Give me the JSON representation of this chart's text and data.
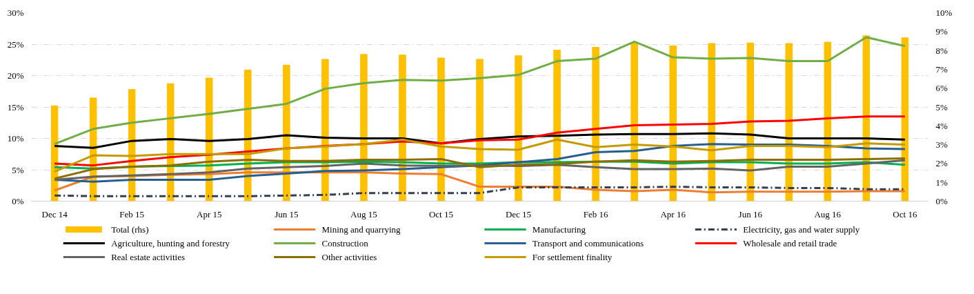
{
  "chart_data": {
    "type": "line",
    "categories": [
      "Dec 14",
      null,
      "Feb 15",
      null,
      "Apr 15",
      null,
      "Jun 15",
      null,
      "Aug 15",
      null,
      "Oct 15",
      null,
      "Dec 15",
      null,
      "Feb 16",
      null,
      "Apr 16",
      null,
      "Jun 16",
      null,
      "Aug 16",
      null,
      "Oct 16"
    ],
    "ylim": [
      0,
      30
    ],
    "yticks": [
      {
        "value": 0,
        "label": "0%"
      },
      {
        "value": 5,
        "label": "5%"
      },
      {
        "value": 10,
        "label": "10%"
      },
      {
        "value": 15,
        "label": "15%"
      },
      {
        "value": 20,
        "label": "20%"
      },
      {
        "value": 25,
        "label": "25%"
      },
      {
        "value": 30,
        "label": "30%"
      }
    ],
    "y2lim": [
      0,
      10
    ],
    "y2ticks": [
      {
        "value": 0,
        "label": "0%"
      },
      {
        "value": 1,
        "label": "1%"
      },
      {
        "value": 2,
        "label": "2%"
      },
      {
        "value": 3,
        "label": "3%"
      },
      {
        "value": 4,
        "label": "4%"
      },
      {
        "value": 5,
        "label": "5%"
      },
      {
        "value": 6,
        "label": "6%"
      },
      {
        "value": 7,
        "label": "7%"
      },
      {
        "value": 8,
        "label": "8%"
      },
      {
        "value": 9,
        "label": "9%"
      },
      {
        "value": 10,
        "label": "10%"
      }
    ],
    "grid": "y",
    "legend": "bottom",
    "series": [
      {
        "name": "Total (rhs)",
        "type": "bar",
        "axis": "y2",
        "color": "#ffc000",
        "values": [
          5.06,
          5.48,
          5.93,
          6.24,
          6.54,
          6.96,
          7.22,
          7.53,
          7.79,
          7.76,
          7.6,
          7.53,
          7.72,
          8.02,
          8.17,
          8.4,
          8.25,
          8.37,
          8.4,
          8.37,
          8.44,
          8.78,
          8.67
        ]
      },
      {
        "name": "Mining and quarrying",
        "color": "#ed7d31",
        "values": [
          1.7,
          3.9,
          4.0,
          4.2,
          4.3,
          4.6,
          4.6,
          4.6,
          4.6,
          4.4,
          4.3,
          2.3,
          2.3,
          2.3,
          1.8,
          1.6,
          1.8,
          1.4,
          1.5,
          1.5,
          1.5,
          1.6,
          1.6
        ]
      },
      {
        "name": "Manufacturing",
        "color": "#00b050",
        "values": [
          5.4,
          5.2,
          5.5,
          5.6,
          5.7,
          6.0,
          6.2,
          6.2,
          6.3,
          6.2,
          6.0,
          6.0,
          6.2,
          6.2,
          6.3,
          6.3,
          6.0,
          6.2,
          6.2,
          6.0,
          6.0,
          6.2,
          5.8
        ]
      },
      {
        "name": "Electricity, gas and water supply",
        "color": "#333f50",
        "line_style": "dashdot",
        "values": [
          0.9,
          0.8,
          0.8,
          0.8,
          0.8,
          0.8,
          0.9,
          1.0,
          1.3,
          1.3,
          1.3,
          1.3,
          2.2,
          2.2,
          2.2,
          2.2,
          2.3,
          2.2,
          2.2,
          2.1,
          2.1,
          1.9,
          1.9
        ]
      },
      {
        "name": "Agriculture, hunting and forestry",
        "color": "#000000",
        "values": [
          8.8,
          8.5,
          9.6,
          9.9,
          9.6,
          9.9,
          10.5,
          10.1,
          10.0,
          10.0,
          9.2,
          9.9,
          10.3,
          10.4,
          10.6,
          10.7,
          10.7,
          10.8,
          10.6,
          10.0,
          10.0,
          10.0,
          9.8
        ]
      },
      {
        "name": "Construction",
        "color": "#70ad47",
        "values": [
          9.1,
          11.5,
          12.5,
          13.2,
          13.9,
          14.7,
          15.5,
          17.9,
          18.8,
          19.3,
          19.2,
          19.6,
          20.1,
          22.3,
          22.7,
          25.4,
          22.9,
          22.7,
          22.8,
          22.3,
          22.3,
          26.1,
          24.7
        ]
      },
      {
        "name": "Transport and communications",
        "color": "#255e91",
        "values": [
          3.4,
          3.1,
          3.4,
          3.4,
          3.4,
          4.0,
          4.4,
          4.8,
          4.9,
          5.1,
          5.4,
          5.7,
          6.2,
          6.7,
          7.8,
          8.0,
          8.8,
          9.1,
          9.0,
          9.0,
          8.8,
          8.4,
          8.3
        ]
      },
      {
        "name": "Wholesale and retail trade",
        "color": "#ff0000",
        "values": [
          6.0,
          5.7,
          6.4,
          7.0,
          7.4,
          7.9,
          8.4,
          8.8,
          9.1,
          9.5,
          9.2,
          9.7,
          9.8,
          10.9,
          11.5,
          12.1,
          12.2,
          12.3,
          12.7,
          12.8,
          13.2,
          13.5,
          13.5
        ]
      },
      {
        "name": "Real estate activities",
        "color": "#636363",
        "values": [
          3.4,
          3.9,
          4.1,
          4.3,
          4.6,
          5.2,
          5.4,
          5.6,
          6.0,
          5.7,
          5.6,
          5.7,
          5.6,
          5.8,
          5.4,
          5.1,
          5.1,
          5.2,
          4.9,
          5.5,
          5.5,
          6.0,
          6.5
        ]
      },
      {
        "name": "Other activities",
        "color": "#8b6d00",
        "values": [
          3.6,
          5.1,
          5.5,
          5.7,
          6.3,
          6.6,
          6.4,
          6.4,
          6.6,
          6.6,
          6.7,
          5.4,
          5.8,
          5.9,
          6.3,
          6.5,
          6.3,
          6.4,
          6.6,
          6.6,
          6.6,
          6.7,
          6.8
        ]
      },
      {
        "name": "For settlement finality",
        "color": "#c49a00",
        "values": [
          4.7,
          7.3,
          7.2,
          7.5,
          7.5,
          7.5,
          8.4,
          8.7,
          9.1,
          9.8,
          8.7,
          8.3,
          8.2,
          9.8,
          8.6,
          9.0,
          8.7,
          8.1,
          8.8,
          8.8,
          8.6,
          9.2,
          9.0
        ]
      }
    ]
  }
}
